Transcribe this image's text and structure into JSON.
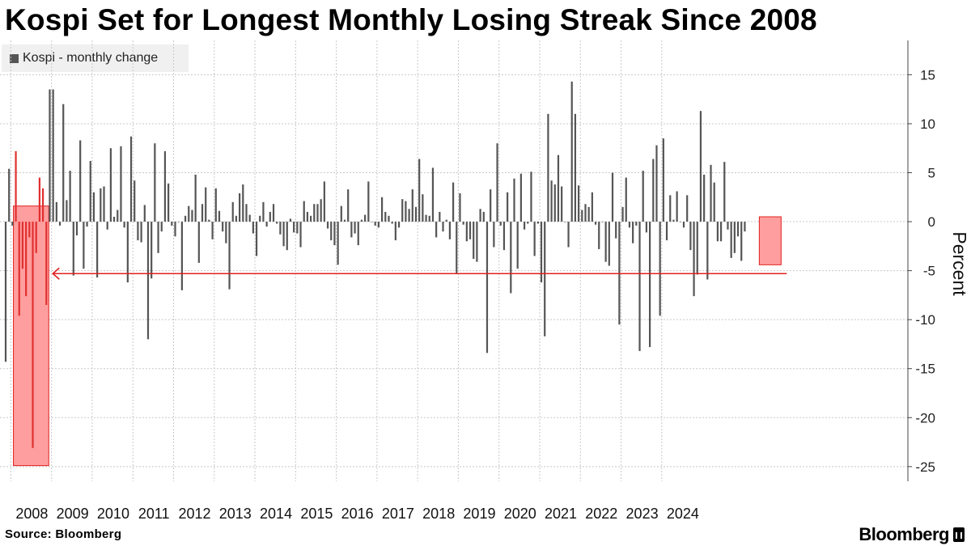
{
  "title": "Kospi Set for Longest Monthly Losing Streak Since 2008",
  "source": "Source: Bloomberg",
  "brand": "Bloomberg",
  "colors": {
    "bar": "#555555",
    "highlight_bar": "#e03030",
    "highlight_fill": "#ff9e9e",
    "highlight_stroke": "#e02020",
    "arrow": "#e02020",
    "grid": "#c8c8c8"
  },
  "chart_data": {
    "type": "bar",
    "title": "Kospi Set for Longest Monthly Losing Streak Since 2008",
    "xlabel": "",
    "ylabel": "Percent",
    "ylim": [
      -26.5,
      18.5
    ],
    "yticks": [
      15,
      10,
      5,
      0,
      -5,
      -10,
      -15,
      -20,
      -25
    ],
    "year_labels": [
      "2008",
      "2009",
      "2010",
      "2011",
      "2012",
      "2013",
      "2014",
      "2015",
      "2016",
      "2017",
      "2018",
      "2019",
      "2020",
      "2021",
      "2022",
      "2023",
      "2024"
    ],
    "start_month": "2007-11",
    "legend": "Kospi - monthly change",
    "legend_position": "top-left",
    "grid": true,
    "series": [
      {
        "name": "Kospi - monthly change",
        "values": [
          -14.3,
          5.4,
          -0.4,
          7.2,
          -9.6,
          -4.8,
          -7.6,
          -1.6,
          -23.1,
          -3.2,
          4.5,
          3.4,
          -8.5,
          13.5,
          13.5,
          2.0,
          -0.4,
          12.0,
          2.2,
          5.2,
          -5.5,
          -1.4,
          8.3,
          -4.8,
          -0.5,
          6.2,
          3.0,
          -5.7,
          3.4,
          3.6,
          -0.8,
          7.5,
          0.5,
          1.2,
          7.7,
          -0.6,
          -6.2,
          8.7,
          4.2,
          -1.9,
          -2.1,
          1.7,
          -12.0,
          -5.8,
          8.0,
          -3.2,
          -1.0,
          7.2,
          3.9,
          -0.4,
          -1.5,
          0.0,
          -7.0,
          0.6,
          1.6,
          1.2,
          4.8,
          -4.2,
          1.8,
          3.5,
          0.2,
          -1.8,
          3.4,
          1.1,
          -1.0,
          -2.2,
          -6.9,
          2.0,
          0.6,
          2.9,
          3.8,
          1.8,
          0.7,
          -1.2,
          -3.5,
          0.6,
          2.0,
          -0.5,
          1.0,
          1.8,
          -0.2,
          -1.3,
          -2.5,
          -2.9,
          0.3,
          -1.1,
          -1.2,
          -2.6,
          2.1,
          1.0,
          0.6,
          1.8,
          1.8,
          2.3,
          4.1,
          -0.7,
          -1.9,
          -2.4,
          -4.4,
          1.6,
          0.2,
          3.3,
          -1.6,
          -1.2,
          -2.4,
          0.2,
          0.7,
          4.1,
          0.0,
          -0.4,
          -0.6,
          2.5,
          1.0,
          0.6,
          -0.2,
          -1.9,
          -0.6,
          2.3,
          2.1,
          1.3,
          3.3,
          1.5,
          6.4,
          2.8,
          0.7,
          0.6,
          5.5,
          -1.6,
          1.0,
          -1.0,
          0.2,
          -1.8,
          4.0,
          -5.3,
          2.9,
          -0.3,
          -2.0,
          -1.8,
          -3.8,
          -4.1,
          1.3,
          1.0,
          -13.4,
          3.3,
          -2.6,
          8.0,
          -0.4,
          -2.9,
          3.0,
          -7.3,
          4.4,
          -4.8,
          4.9,
          -0.8,
          -0.2,
          5.1,
          -3.5,
          -0.2,
          -6.2,
          -11.7,
          11.0,
          4.2,
          3.8,
          6.8,
          3.6,
          0.0,
          -2.6,
          14.3,
          11.0,
          3.7,
          1.2,
          1.8,
          1.5,
          3.0,
          -0.3,
          -2.8,
          0.0,
          -4.1,
          -4.5,
          5.0,
          -1.7,
          -10.5,
          1.5,
          4.5,
          -0.6,
          -2.2,
          -0.4,
          -13.2,
          5.2,
          -1.1,
          -12.8,
          6.4,
          7.8,
          -9.6,
          8.5,
          -1.9,
          2.7,
          0.2,
          3.1,
          0.0,
          -0.6,
          2.7,
          -2.9,
          -7.6,
          -5.4,
          11.3,
          4.8,
          -5.9,
          5.8,
          4.0,
          -2.0,
          -2.0,
          6.1,
          -0.8,
          -3.7,
          -3.2,
          -1.5,
          -4.0,
          -1.0
        ],
        "highlight_ranges": [
          [
            3,
            12
          ],
          [
            223,
            228
          ]
        ]
      }
    ],
    "annotation": {
      "highlight_2008_range": [
        -24.9,
        1.6
      ],
      "highlight_2024_range": [
        -4.4,
        0.5
      ],
      "arrow_level": -5.3
    }
  }
}
